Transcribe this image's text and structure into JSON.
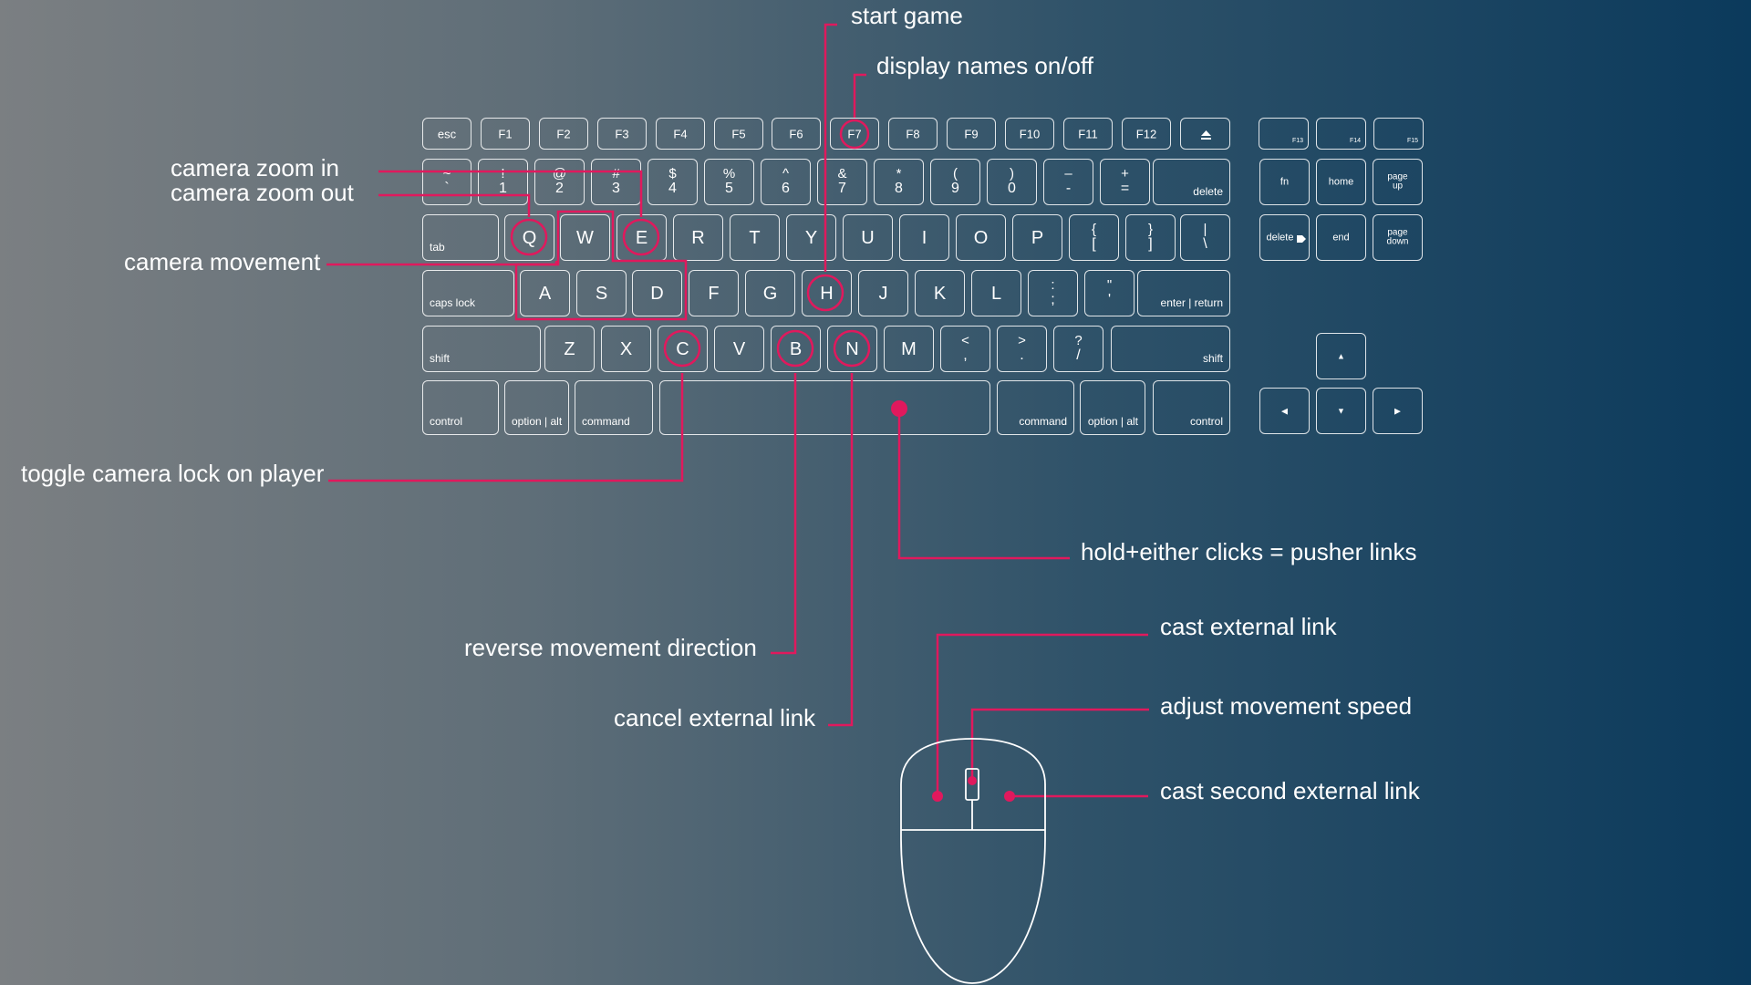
{
  "accent_color": "#e0195d",
  "keyboard": {
    "fn_row": [
      "esc",
      "F1",
      "F2",
      "F3",
      "F4",
      "F5",
      "F6",
      "F7",
      "F8",
      "F9",
      "F10",
      "F11",
      "F12"
    ],
    "eject_icon": "eject-icon",
    "extra_fn": [
      "F13",
      "F14",
      "F15"
    ],
    "number_row": [
      {
        "top": "~",
        "bottom": "`"
      },
      {
        "top": "!",
        "bottom": "1"
      },
      {
        "top": "@",
        "bottom": "2"
      },
      {
        "top": "#",
        "bottom": "3"
      },
      {
        "top": "$",
        "bottom": "4"
      },
      {
        "top": "%",
        "bottom": "5"
      },
      {
        "top": "^",
        "bottom": "6"
      },
      {
        "top": "&",
        "bottom": "7"
      },
      {
        "top": "*",
        "bottom": "8"
      },
      {
        "top": "(",
        "bottom": "9"
      },
      {
        "top": ")",
        "bottom": "0"
      },
      {
        "top": "–",
        "bottom": "-"
      },
      {
        "top": "+",
        "bottom": "="
      }
    ],
    "delete": "delete",
    "tab": "tab",
    "qwerty_row": [
      "Q",
      "W",
      "E",
      "R",
      "T",
      "Y",
      "U",
      "I",
      "O",
      "P"
    ],
    "bracket_keys": [
      {
        "top": "{",
        "bottom": "["
      },
      {
        "top": "}",
        "bottom": "]"
      },
      {
        "top": "|",
        "bottom": "\\"
      }
    ],
    "caps_lock": "caps lock",
    "home_row": [
      "A",
      "S",
      "D",
      "F",
      "G",
      "H",
      "J",
      "K",
      "L"
    ],
    "semicolon": {
      "top": ":",
      "bottom": ";"
    },
    "quote": {
      "top": "\"",
      "bottom": "'"
    },
    "enter": "enter | return",
    "shift": "shift",
    "bottom_letters": [
      "Z",
      "X",
      "C",
      "V",
      "B",
      "N",
      "M"
    ],
    "comma": {
      "top": "<",
      "bottom": ","
    },
    "period": {
      "top": ">",
      "bottom": "."
    },
    "slash": {
      "top": "?",
      "bottom": "/"
    },
    "control": "control",
    "option": "option | alt",
    "command": "command",
    "nav": {
      "fn": "fn",
      "home": "home",
      "page_up": "page up",
      "delete_fwd": "delete",
      "end": "end",
      "page_down": "page down"
    },
    "arrows": {
      "up": "▲",
      "left": "◀",
      "down": "▼",
      "right": "▶"
    }
  },
  "annotations": {
    "start_game": "start game",
    "display_names": "display names on/off",
    "camera_zoom_in": "camera zoom in",
    "camera_zoom_out": "camera zoom out",
    "camera_movement": "camera movement",
    "toggle_camera_lock": "toggle camera lock on player",
    "hold_either_clicks": "hold+either clicks = pusher links",
    "reverse_movement": "reverse movement direction",
    "cancel_external": "cancel external link",
    "cast_external": "cast external link",
    "adjust_speed": "adjust movement speed",
    "cast_second": "cast second external link"
  }
}
